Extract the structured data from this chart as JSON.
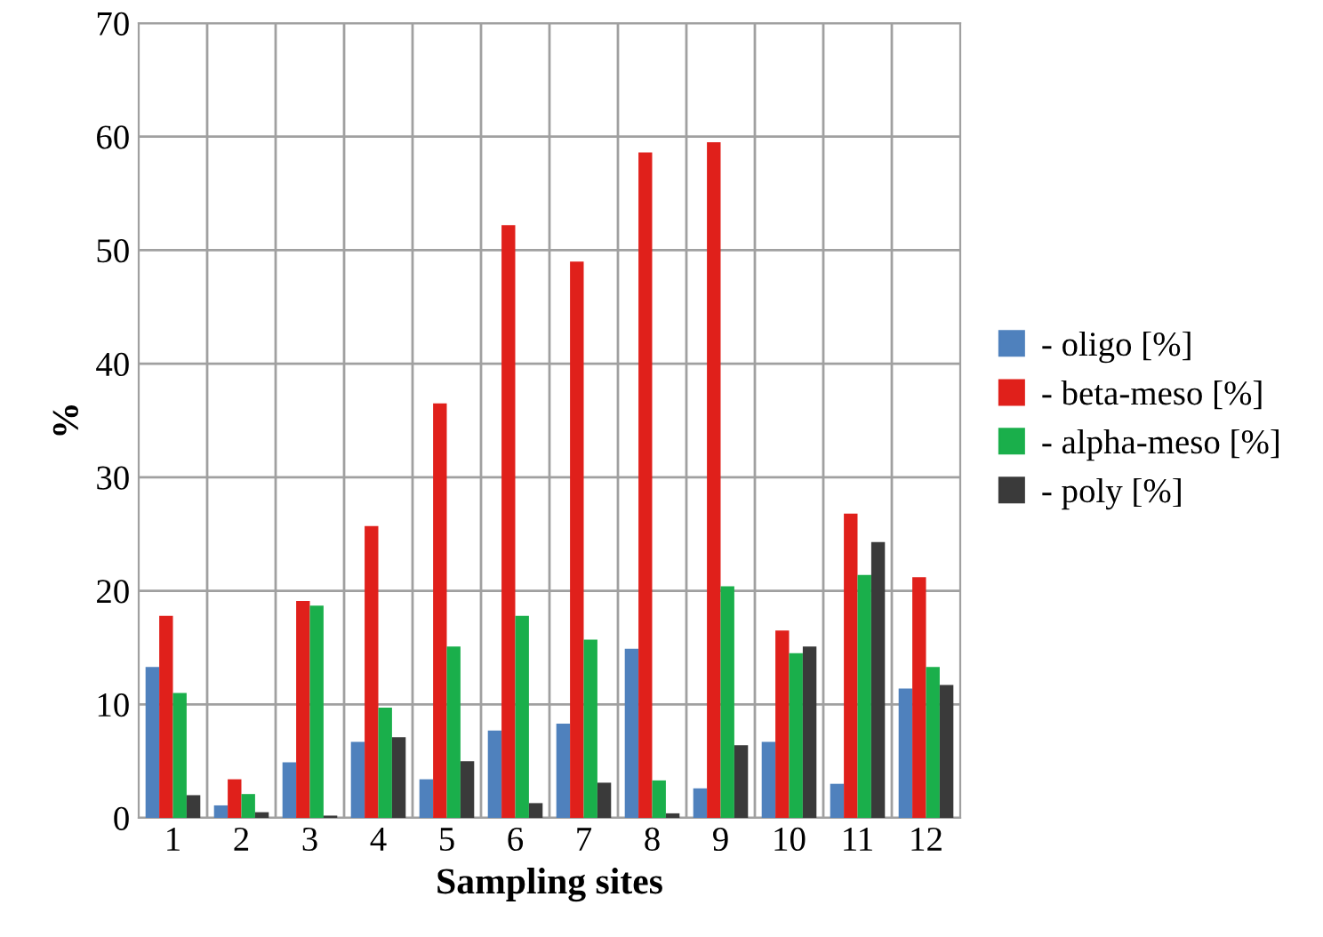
{
  "chart_data": {
    "type": "bar",
    "xlabel": "Sampling sites",
    "ylabel": "%",
    "categories": [
      "1",
      "2",
      "3",
      "4",
      "5",
      "6",
      "7",
      "8",
      "9",
      "10",
      "11",
      "12"
    ],
    "series": [
      {
        "name": "- oligo [%]",
        "color": "#4f81bd",
        "values": [
          13.3,
          1.1,
          4.9,
          6.7,
          3.4,
          7.7,
          8.3,
          14.9,
          2.6,
          6.7,
          3.0,
          11.4
        ]
      },
      {
        "name": "- beta-meso [%]",
        "color": "#e0201b",
        "values": [
          17.8,
          3.4,
          19.1,
          25.7,
          36.5,
          52.2,
          49.0,
          58.6,
          59.5,
          16.5,
          26.8,
          21.2
        ]
      },
      {
        "name": "- alpha-meso [%]",
        "color": "#1aaf4b",
        "values": [
          11.0,
          2.1,
          18.7,
          9.7,
          15.1,
          17.8,
          15.7,
          3.3,
          20.4,
          14.5,
          21.4,
          13.3
        ]
      },
      {
        "name": "- poly [%]",
        "color": "#3a3a3a",
        "values": [
          2.0,
          0.5,
          0.2,
          7.1,
          5.0,
          1.3,
          3.1,
          0.4,
          6.4,
          15.1,
          24.3,
          11.7
        ]
      }
    ],
    "ylim": [
      0,
      70
    ],
    "yticks": [
      0,
      10,
      20,
      30,
      40,
      50,
      60,
      70
    ],
    "grid": true,
    "legend": "right"
  }
}
